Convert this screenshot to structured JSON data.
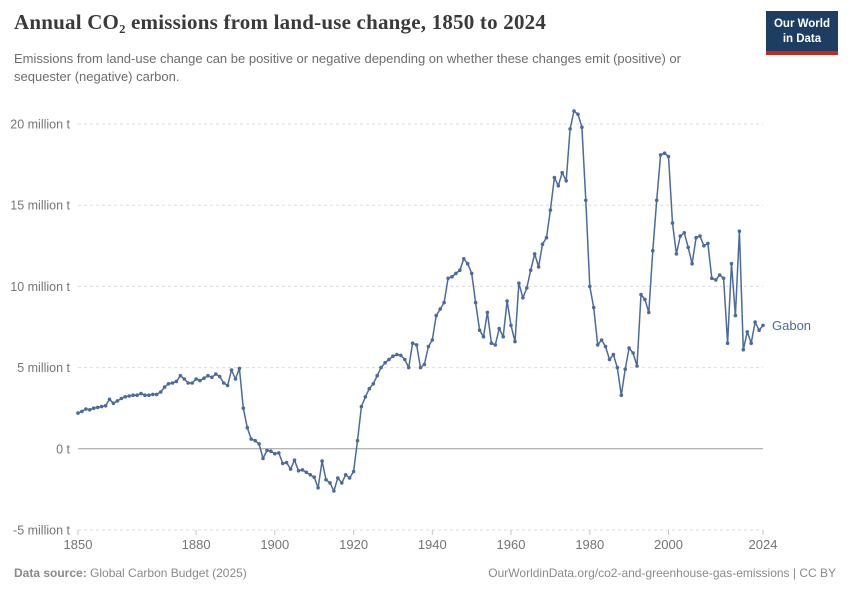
{
  "header": {
    "title": "Annual CO₂ emissions from land-use change, 1850 to 2024",
    "subtitle": "Emissions from land-use change can be positive or negative depending on whether these changes emit (positive) or sequester (negative) carbon.",
    "logo": {
      "line1": "Our World",
      "line2": "in Data"
    }
  },
  "footer": {
    "source_label": "Data source:",
    "source_value": " Global Carbon Budget (2025)",
    "right_text": "OurWorldinData.org/co2-and-greenhouse-gas-emissions | CC BY"
  },
  "colors": {
    "line": "#4C6A9C",
    "grid": "#dcdcdc",
    "zero_line": "#9e9e9e",
    "axis_text": "#757575",
    "tick_mark": "#c4c4c4",
    "logo_bg": "#1d3d63",
    "logo_accent": "#c5291c"
  },
  "chart_data": {
    "type": "line",
    "title": "Annual CO₂ emissions from land-use change, 1850 to 2024",
    "xlabel": "",
    "ylabel": "",
    "x_start": 1850,
    "x_end": 2024,
    "ylim": [
      -5,
      21
    ],
    "grid": "dashed-horizontal",
    "legend_position": "end-of-line-label",
    "x_ticks": [
      1850,
      1880,
      1900,
      1920,
      1940,
      1960,
      1980,
      2000,
      2024
    ],
    "y_ticks": [
      {
        "value": -5,
        "label": "-5 million t"
      },
      {
        "value": 0,
        "label": "0 t"
      },
      {
        "value": 5,
        "label": "5 million t"
      },
      {
        "value": 10,
        "label": "10 million t"
      },
      {
        "value": 15,
        "label": "15 million t"
      },
      {
        "value": 20,
        "label": "20 million t"
      }
    ],
    "series": [
      {
        "name": "Gabon",
        "color": "#4C6A9C",
        "values": [
          2.2,
          2.3,
          2.45,
          2.4,
          2.5,
          2.55,
          2.6,
          2.65,
          3.05,
          2.8,
          2.95,
          3.1,
          3.2,
          3.25,
          3.3,
          3.3,
          3.4,
          3.3,
          3.3,
          3.35,
          3.35,
          3.5,
          3.8,
          4.0,
          4.05,
          4.15,
          4.5,
          4.3,
          4.05,
          4.05,
          4.3,
          4.2,
          4.35,
          4.5,
          4.4,
          4.6,
          4.45,
          4.05,
          3.9,
          4.85,
          4.3,
          4.95,
          2.5,
          1.3,
          0.6,
          0.5,
          0.3,
          -0.6,
          -0.1,
          -0.15,
          -0.3,
          -0.25,
          -0.9,
          -0.85,
          -1.25,
          -0.7,
          -1.35,
          -1.3,
          -1.45,
          -1.6,
          -1.75,
          -2.4,
          -0.75,
          -1.9,
          -2.1,
          -2.6,
          -1.8,
          -2.1,
          -1.6,
          -1.8,
          -1.4,
          0.5,
          2.6,
          3.2,
          3.7,
          4.0,
          4.5,
          5.0,
          5.3,
          5.5,
          5.7,
          5.8,
          5.75,
          5.5,
          5.0,
          6.5,
          6.4,
          5.0,
          5.2,
          6.3,
          6.7,
          8.2,
          8.6,
          9.0,
          10.5,
          10.6,
          10.8,
          11.0,
          11.7,
          11.4,
          10.8,
          9.0,
          7.3,
          6.9,
          8.4,
          6.5,
          6.4,
          7.4,
          6.9,
          9.1,
          7.6,
          6.6,
          10.2,
          9.3,
          9.9,
          11.0,
          12.0,
          11.2,
          12.6,
          13.0,
          14.7,
          16.7,
          16.2,
          17.0,
          16.5,
          19.7,
          20.8,
          20.6,
          19.8,
          15.3,
          10.0,
          8.7,
          6.4,
          6.7,
          6.3,
          5.5,
          5.8,
          5.0,
          3.3,
          4.9,
          6.2,
          5.9,
          5.1,
          9.5,
          9.2,
          8.4,
          12.2,
          15.3,
          18.1,
          18.2,
          18.0,
          13.9,
          12.0,
          13.1,
          13.3,
          12.4,
          11.4,
          13.0,
          13.1,
          12.5,
          12.65,
          10.5,
          10.4,
          10.7,
          10.5,
          6.5,
          11.4,
          8.2,
          13.4,
          6.1,
          7.2,
          6.5,
          7.8,
          7.3,
          7.6
        ]
      }
    ]
  }
}
